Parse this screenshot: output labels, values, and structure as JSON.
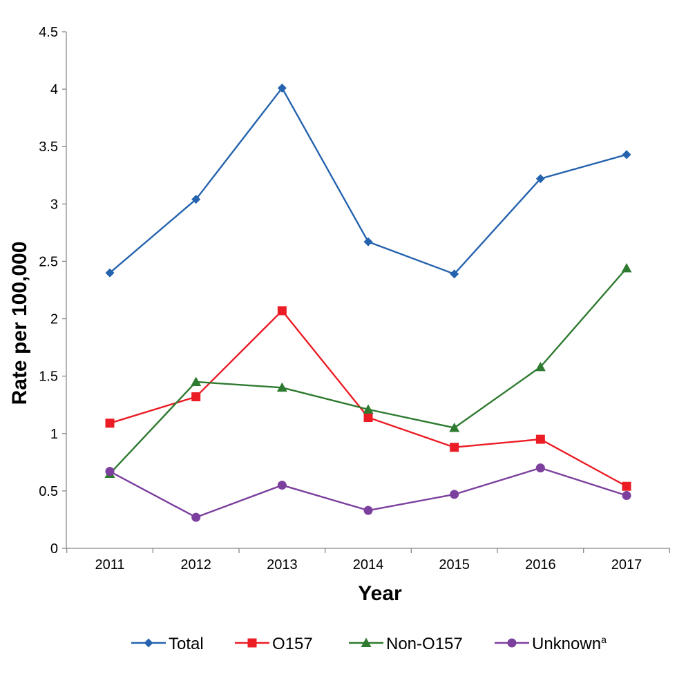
{
  "chart_data": {
    "type": "line",
    "xlabel": "Year",
    "ylabel": "Rate per 100,000",
    "ylim": [
      0,
      4.5
    ],
    "yticks": [
      "0",
      "0.5",
      "1",
      "1.5",
      "2",
      "2.5",
      "3",
      "3.5",
      "4",
      "4.5"
    ],
    "categories": [
      "2011",
      "2012",
      "2013",
      "2014",
      "2015",
      "2016",
      "2017"
    ],
    "grid": false,
    "legend_position": "bottom",
    "series": [
      {
        "name": "Total",
        "marker": "diamond",
        "color": "#2563ae",
        "values": [
          2.4,
          3.04,
          4.01,
          2.67,
          2.39,
          3.22,
          3.43
        ]
      },
      {
        "name": "O157",
        "marker": "square",
        "color": "#ec1c24",
        "values": [
          1.09,
          1.32,
          2.07,
          1.14,
          0.88,
          0.95,
          0.54
        ]
      },
      {
        "name": "Non-O157",
        "marker": "triangle",
        "color": "#2e7a30",
        "values": [
          0.65,
          1.45,
          1.4,
          1.21,
          1.05,
          1.58,
          2.44
        ]
      },
      {
        "name": "Unknown",
        "superscript": "a",
        "marker": "circle",
        "color": "#7b3f9e",
        "values": [
          0.67,
          0.27,
          0.55,
          0.33,
          0.47,
          0.7,
          0.46
        ]
      }
    ]
  }
}
